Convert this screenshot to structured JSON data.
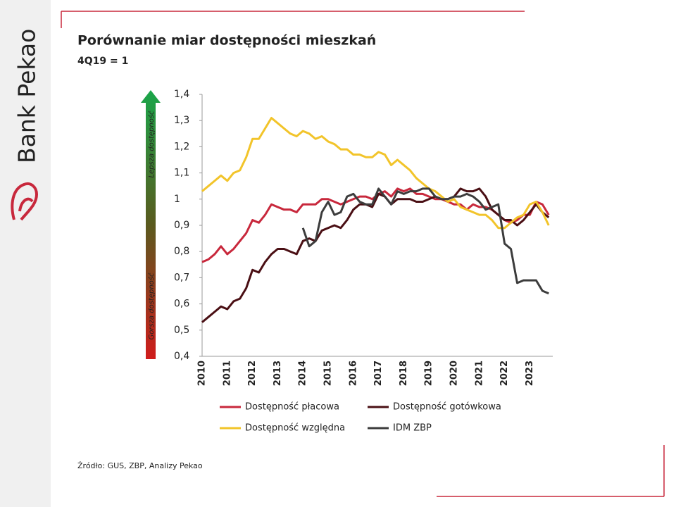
{
  "brand": "Bank Pekao",
  "source": "Źródło: GUS, ZBP, Analizy Pekao",
  "arrow_labels": {
    "top": "Lepsza dostępność",
    "bottom": "Gorsza dostępność"
  },
  "chart_data": {
    "type": "line",
    "title": "Porównanie miar dostępności mieszkań",
    "subtitle": "4Q19 = 1",
    "categories": [
      "2010",
      null,
      null,
      null,
      "2011",
      null,
      null,
      null,
      "2012",
      null,
      null,
      null,
      "2013",
      null,
      null,
      null,
      "2014",
      null,
      null,
      null,
      "2015",
      null,
      null,
      null,
      "2016",
      null,
      null,
      null,
      "2017",
      null,
      null,
      null,
      "2018",
      null,
      null,
      null,
      "2019",
      null,
      null,
      null,
      "2020",
      null,
      null,
      null,
      "2021",
      null,
      null,
      null,
      "2022",
      null,
      null,
      null,
      "2023",
      null,
      null,
      null
    ],
    "ylim": [
      0.4,
      1.4
    ],
    "yticks": [
      {
        "value": 0.4,
        "label": "0,4"
      },
      {
        "value": 0.5,
        "label": "0,5"
      },
      {
        "value": 0.6,
        "label": "0,6"
      },
      {
        "value": 0.7,
        "label": "0,7"
      },
      {
        "value": 0.8,
        "label": "0,8"
      },
      {
        "value": 0.9,
        "label": "0,9"
      },
      1,
      {
        "value": 1.1,
        "label": "1,1"
      },
      {
        "value": 1.2,
        "label": "1,2"
      },
      {
        "value": 1.3,
        "label": "1,3"
      },
      {
        "value": 1.4,
        "label": "1,4"
      }
    ],
    "grid": false,
    "series": [
      {
        "name": "Dostępność płacowa",
        "color": "#c8283c",
        "values": [
          0.76,
          0.77,
          0.79,
          0.82,
          0.79,
          0.81,
          0.84,
          0.87,
          0.92,
          0.91,
          0.94,
          0.98,
          0.97,
          0.96,
          0.96,
          0.95,
          0.98,
          0.98,
          0.98,
          1.0,
          1.0,
          0.99,
          0.98,
          0.99,
          1.0,
          1.01,
          1.01,
          1.0,
          1.02,
          1.03,
          1.01,
          1.04,
          1.03,
          1.04,
          1.02,
          1.02,
          1.01,
          1.0,
          1.0,
          0.99,
          0.98,
          0.98,
          0.96,
          0.98,
          0.97,
          0.97,
          0.96,
          0.94,
          0.92,
          0.91,
          0.92,
          0.94,
          0.94,
          0.99,
          0.98,
          0.94
        ]
      },
      {
        "name": "Dostępność gotówkowa",
        "color": "#4a0f14",
        "values": [
          0.53,
          0.55,
          0.57,
          0.59,
          0.58,
          0.61,
          0.62,
          0.66,
          0.73,
          0.72,
          0.76,
          0.79,
          0.81,
          0.81,
          0.8,
          0.79,
          0.84,
          0.85,
          0.84,
          0.88,
          0.89,
          0.9,
          0.89,
          0.92,
          0.96,
          0.98,
          0.98,
          0.97,
          1.02,
          1.01,
          0.98,
          1.0,
          1.0,
          1.0,
          0.99,
          0.99,
          1.0,
          1.01,
          1.0,
          1.0,
          1.01,
          1.04,
          1.03,
          1.03,
          1.04,
          1.01,
          0.96,
          0.94,
          0.92,
          0.92,
          0.9,
          0.92,
          0.95,
          0.98,
          0.95,
          0.93
        ]
      },
      {
        "name": "Dostępność względna",
        "color": "#f2c42a",
        "values": [
          1.03,
          1.05,
          1.07,
          1.09,
          1.07,
          1.1,
          1.11,
          1.16,
          1.23,
          1.23,
          1.27,
          1.31,
          1.29,
          1.27,
          1.25,
          1.24,
          1.26,
          1.25,
          1.23,
          1.24,
          1.22,
          1.21,
          1.19,
          1.19,
          1.17,
          1.17,
          1.16,
          1.16,
          1.18,
          1.17,
          1.13,
          1.15,
          1.13,
          1.11,
          1.08,
          1.06,
          1.04,
          1.03,
          1.01,
          0.99,
          1.0,
          0.97,
          0.96,
          0.95,
          0.94,
          0.94,
          0.92,
          0.89,
          0.89,
          0.91,
          0.93,
          0.94,
          0.98,
          0.99,
          0.95,
          0.9
        ]
      },
      {
        "name": "IDM ZBP",
        "color": "#3c3c3c",
        "values": [
          null,
          null,
          null,
          null,
          null,
          null,
          null,
          null,
          null,
          null,
          null,
          null,
          null,
          null,
          null,
          null,
          0.89,
          0.82,
          0.84,
          0.95,
          0.99,
          0.94,
          0.95,
          1.01,
          1.02,
          0.99,
          0.98,
          0.98,
          1.04,
          1.01,
          0.98,
          1.03,
          1.02,
          1.03,
          1.03,
          1.04,
          1.04,
          1.01,
          1.0,
          1.0,
          1.01,
          1.01,
          1.02,
          1.01,
          0.99,
          0.96,
          0.97,
          0.98,
          0.83,
          0.81,
          0.68,
          0.69,
          0.69,
          0.69,
          0.65,
          0.64
        ]
      }
    ]
  }
}
